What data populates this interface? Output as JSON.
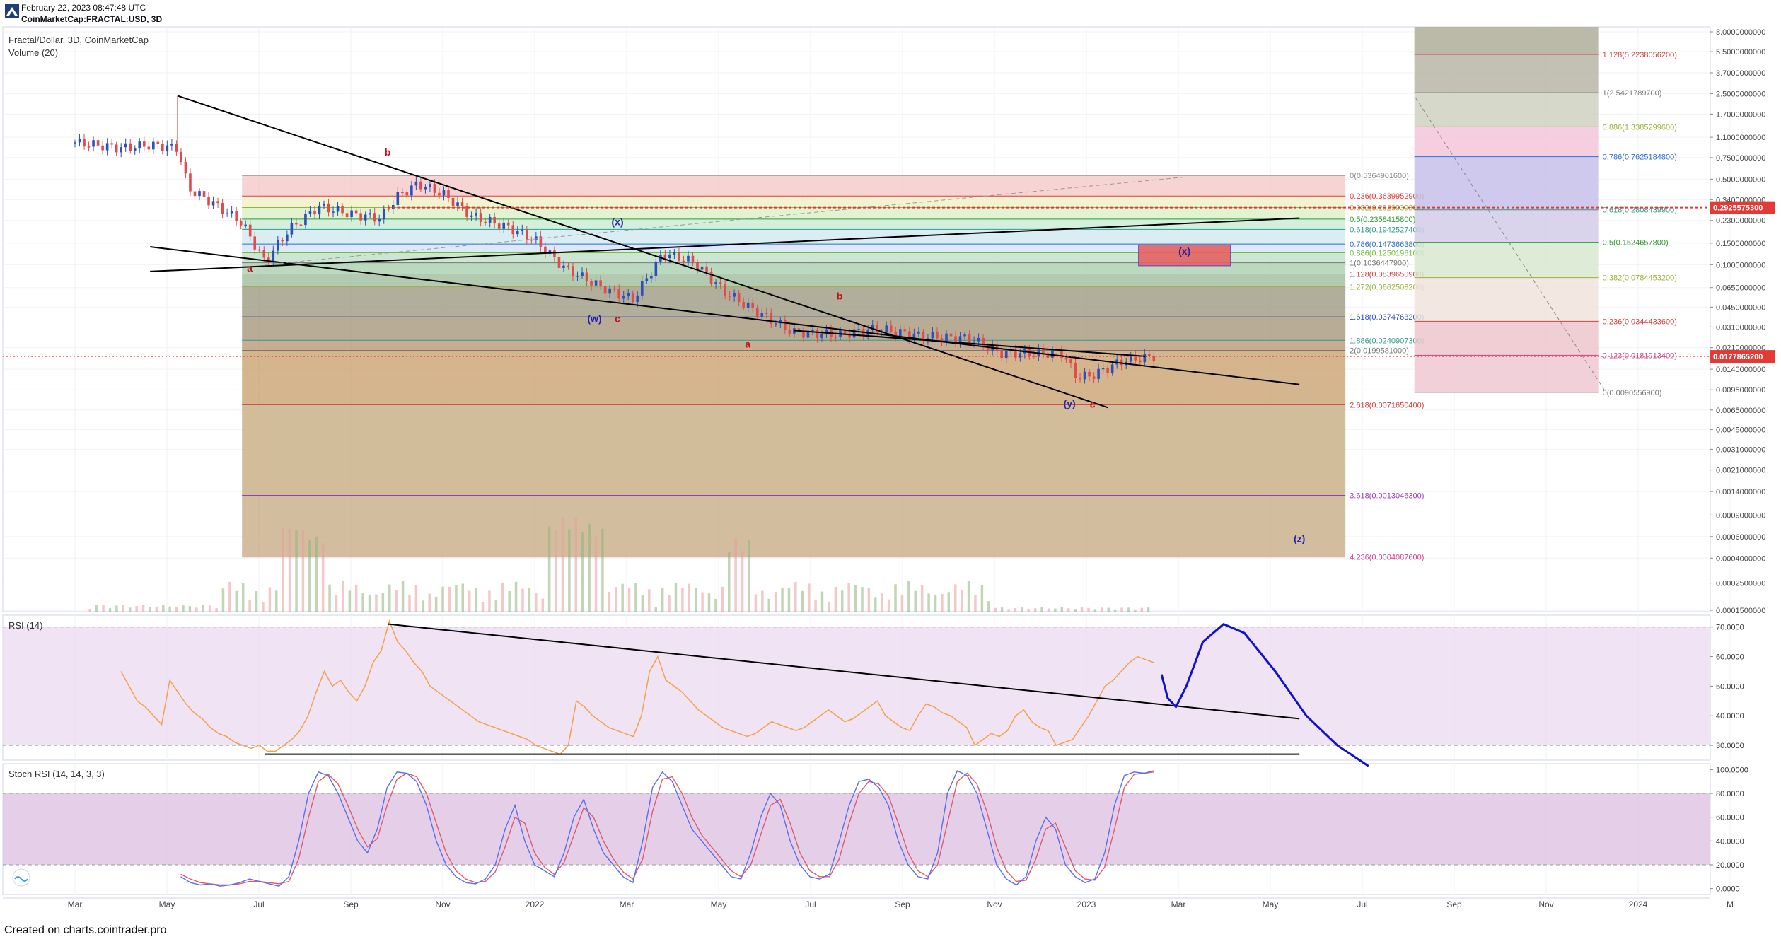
{
  "header": {
    "date_line": "February 22, 2023 08:47:48 UTC",
    "symbol_line": "CoinMarketCap:FRACTAL:USD, 3D",
    "chart_title": "Fractal/Dollar, 3D, CoinMarketCap",
    "volume_label": "Volume (20)"
  },
  "footer": {
    "credit": "Created on charts.cointrader.pro"
  },
  "colors": {
    "up": "#2b4fbf",
    "down": "#e04b4b",
    "price_marker": "#e53935",
    "rsi_line": "#f5a04a",
    "stoch_k": "#5a6cf0",
    "stoch_d": "#e05a6a",
    "panel_fill": "#ead7ee",
    "projection": "#1010d0"
  },
  "chart_data": {
    "type": "candlestick",
    "symbol": "Fractal/Dollar",
    "interval": "3D",
    "y_scale": "log",
    "price_axis_labels": [
      "8.0000000000",
      "5.5000000000",
      "3.7000000000",
      "2.5000000000",
      "1.7000000000",
      "1.1000000000",
      "0.7500000000",
      "0.5000000000",
      "0.3400000000",
      "0.2300000000",
      "0.1500000000",
      "0.1000000000",
      "0.0650000000",
      "0.0450000000",
      "0.0310000000",
      "0.0210000000",
      "0.0140000000",
      "0.0095000000",
      "0.0065000000",
      "0.0045000000",
      "0.0031000000",
      "0.0021000000",
      "0.0014000000",
      "0.0009000000",
      "0.0006000000",
      "0.0004000000",
      "0.0002500000",
      "0.0001500000"
    ],
    "time_axis_labels": [
      "Mar",
      "May",
      "Jul",
      "Sep",
      "Nov",
      "2022",
      "Mar",
      "May",
      "Jul",
      "Sep",
      "Nov",
      "2023",
      "Mar",
      "May",
      "Jul",
      "Sep",
      "Nov",
      "2024",
      "M"
    ],
    "current_price": "0.0177865200",
    "target_price": "0.2925575300",
    "candles_close_path": [
      [
        "2021-03",
        1.0
      ],
      [
        "2021-04",
        0.9
      ],
      [
        "2021-04-20",
        0.95
      ],
      [
        "2021-05-08",
        0.9
      ],
      [
        "2021-05-15",
        0.42
      ],
      [
        "2021-06",
        0.32
      ],
      [
        "2021-06-20",
        0.22
      ],
      [
        "2021-07-05",
        0.105
      ],
      [
        "2021-07-20",
        0.19
      ],
      [
        "2021-08-10",
        0.3
      ],
      [
        "2021-09",
        0.26
      ],
      [
        "2021-09-20",
        0.24
      ],
      [
        "2021-10",
        0.36
      ],
      [
        "2021-10-15",
        0.46
      ],
      [
        "2021-11",
        0.38
      ],
      [
        "2021-11-20",
        0.25
      ],
      [
        "2021-12-15",
        0.2
      ],
      [
        "2022-01",
        0.16
      ],
      [
        "2022-01-20",
        0.095
      ],
      [
        "2022-02-15",
        0.065
      ],
      [
        "2022-03-05",
        0.052
      ],
      [
        "2022-03-25",
        0.125
      ],
      [
        "2022-04-15",
        0.105
      ],
      [
        "2022-05-05",
        0.06
      ],
      [
        "2022-05-25",
        0.042
      ],
      [
        "2022-06-20",
        0.028
      ],
      [
        "2022-07-20",
        0.027
      ],
      [
        "2022-08-15",
        0.03
      ],
      [
        "2022-09-15",
        0.026
      ],
      [
        "2022-10-15",
        0.025
      ],
      [
        "2022-11-05",
        0.019
      ],
      [
        "2022-11-25",
        0.019
      ],
      [
        "2022-12-15",
        0.019
      ],
      [
        "2022-12-25",
        0.012
      ],
      [
        "2023-01-05",
        0.0125
      ],
      [
        "2023-01-25",
        0.0165
      ],
      [
        "2023-02-15",
        0.0178
      ]
    ],
    "fib_left": [
      {
        "label": "0(0.5364901600)",
        "value": 0.53649016,
        "color": "#8a8a8a"
      },
      {
        "label": "0.236(0.3639952900)",
        "value": 0.36399529,
        "color": "#e53935"
      },
      {
        "label": "0.382(0.2929939300)",
        "value": 0.29299393,
        "color": "#9ab23a"
      },
      {
        "label": "0.5(0.2358415800)",
        "value": 0.23584158,
        "color": "#2e9b2e"
      },
      {
        "label": "0.618(0.1942527400)",
        "value": 0.19425274,
        "color": "#2e9b8a"
      },
      {
        "label": "0.786(0.1473663800)",
        "value": 0.14736638,
        "color": "#2f6fd0"
      },
      {
        "label": "0.886(0.1250196100)",
        "value": 0.12501961,
        "color": "#6fbf3a"
      },
      {
        "label": "1(0.1036447900)",
        "value": 0.10364479,
        "color": "#777777"
      },
      {
        "label": "1.128(0.0839650900)",
        "value": 0.08396509,
        "color": "#d04040"
      },
      {
        "label": "1.272(0.0662508200)",
        "value": 0.06625082,
        "color": "#9ab23a"
      },
      {
        "label": "1.618(0.0374763200)",
        "value": 0.03747632,
        "color": "#2f4fc0"
      },
      {
        "label": "1.886(0.0240907300)",
        "value": 0.02409073,
        "color": "#2e9b8a"
      },
      {
        "label": "2(0.0199581000)",
        "value": 0.0199581,
        "color": "#777777"
      },
      {
        "label": "2.618(0.0071650400)",
        "value": 0.00716504,
        "color": "#d04040"
      },
      {
        "label": "3.618(0.0013046300)",
        "value": 0.00130463,
        "color": "#9b3ac0"
      },
      {
        "label": "4.236(0.0004087600)",
        "value": 0.00040876,
        "color": "#d0408a"
      }
    ],
    "fib_right": [
      {
        "label": "1.128(5.2238056200)",
        "value": 5.22380562,
        "color": "#d04040"
      },
      {
        "label": "1(2.5421789700)",
        "value": 2.54217897,
        "color": "#777777"
      },
      {
        "label": "0.886(1.3385299600)",
        "value": 1.33852996,
        "color": "#9ab23a"
      },
      {
        "label": "0.786(0.7625184800)",
        "value": 0.76251848,
        "color": "#2f6fd0"
      },
      {
        "label": "0.618(0.2808439900)",
        "value": 0.28084399,
        "color": "#2e9b8a"
      },
      {
        "label": "0.5(0.1524657800)",
        "value": 0.15246578,
        "color": "#2e9b2e"
      },
      {
        "label": "0.382(0.0784453200)",
        "value": 0.07844532,
        "color": "#9ab23a"
      },
      {
        "label": "0.236(0.0344433600)",
        "value": 0.03444336,
        "color": "#d04040"
      },
      {
        "label": "0.123(0.0181913400)",
        "value": 0.01819134,
        "color": "#d0408a"
      },
      {
        "label": "0(0.0090556900)",
        "value": 0.00905569,
        "color": "#777777"
      }
    ],
    "wave_labels": [
      {
        "text": "b",
        "date": "2021-09-25",
        "price": 0.78,
        "color": "#c0101a"
      },
      {
        "text": "a",
        "date": "2021-06-25",
        "price": 0.088,
        "color": "#c0101a"
      },
      {
        "text": "(x)",
        "date": "2022-02-25",
        "price": 0.21,
        "color": "#2222aa"
      },
      {
        "text": "(w)",
        "date": "2022-02-10",
        "price": 0.034,
        "color": "#2222aa"
      },
      {
        "text": "c",
        "date": "2022-02-25",
        "price": 0.034,
        "color": "#c0101a"
      },
      {
        "text": "b",
        "date": "2022-07-20",
        "price": 0.052,
        "color": "#c0101a"
      },
      {
        "text": "a",
        "date": "2022-05-20",
        "price": 0.021,
        "color": "#c0101a"
      },
      {
        "text": "(y)",
        "date": "2022-12-20",
        "price": 0.0069,
        "color": "#2222aa"
      },
      {
        "text": "c",
        "date": "2023-01-05",
        "price": 0.0068,
        "color": "#c0101a"
      },
      {
        "text": "(x)",
        "date": "2023-03-05",
        "price": 0.121,
        "color": "#2222aa"
      },
      {
        "text": "(z)",
        "date": "2023-05-20",
        "price": 0.00054,
        "color": "#2222aa"
      }
    ],
    "rsi": {
      "label": "RSI (14)",
      "axis_labels": [
        "70.0000",
        "60.0000",
        "50.0000",
        "40.0000",
        "30.0000"
      ],
      "ylim": [
        25,
        74
      ],
      "bands": [
        30,
        70
      ],
      "values": [
        55,
        50,
        45,
        43,
        40,
        37,
        52,
        48,
        44,
        41,
        39,
        36,
        34,
        33,
        31,
        30,
        29,
        30,
        28,
        28,
        30,
        32,
        35,
        40,
        48,
        55,
        50,
        52,
        48,
        45,
        50,
        58,
        62,
        72,
        65,
        62,
        58,
        55,
        50,
        48,
        46,
        44,
        42,
        40,
        38,
        37,
        36,
        35,
        34,
        33,
        32,
        30,
        29,
        28,
        27,
        30,
        45,
        43,
        40,
        38,
        36,
        35,
        34,
        33,
        40,
        55,
        60,
        52,
        50,
        48,
        45,
        42,
        40,
        38,
        36,
        35,
        34,
        33,
        34,
        36,
        38,
        37,
        36,
        35,
        36,
        38,
        40,
        42,
        40,
        38,
        39,
        41,
        43,
        45,
        40,
        38,
        36,
        35,
        40,
        44,
        43,
        41,
        40,
        38,
        36,
        30,
        32,
        34,
        33,
        35,
        40,
        42,
        38,
        36,
        35,
        30,
        31,
        32,
        36,
        40,
        45,
        50,
        52,
        55,
        58,
        60,
        59,
        58
      ],
      "projection": [
        [
          0.0,
          54
        ],
        [
          0.03,
          46
        ],
        [
          0.07,
          43
        ],
        [
          0.12,
          50
        ],
        [
          0.2,
          65
        ],
        [
          0.3,
          71
        ],
        [
          0.4,
          68
        ],
        [
          0.55,
          55
        ],
        [
          0.7,
          40
        ],
        [
          0.85,
          30
        ],
        [
          1.0,
          23
        ]
      ]
    },
    "stoch_rsi": {
      "label": "Stoch RSI (14, 14, 3, 3)",
      "axis_labels": [
        "100.0000",
        "80.0000",
        "60.0000",
        "40.0000",
        "20.0000",
        "0.0000"
      ],
      "ylim": [
        -5,
        105
      ],
      "bands": [
        20,
        80
      ],
      "k": [
        10,
        5,
        3,
        4,
        2,
        3,
        5,
        8,
        6,
        4,
        2,
        10,
        40,
        80,
        98,
        95,
        80,
        60,
        40,
        30,
        50,
        85,
        98,
        97,
        90,
        70,
        40,
        20,
        10,
        5,
        4,
        8,
        20,
        50,
        70,
        40,
        20,
        15,
        10,
        30,
        60,
        75,
        50,
        30,
        20,
        10,
        5,
        40,
        85,
        98,
        90,
        70,
        50,
        40,
        30,
        20,
        10,
        8,
        30,
        60,
        80,
        70,
        40,
        20,
        10,
        8,
        12,
        40,
        70,
        90,
        92,
        85,
        70,
        40,
        20,
        10,
        8,
        30,
        80,
        99,
        95,
        80,
        50,
        20,
        8,
        3,
        10,
        40,
        60,
        50,
        20,
        10,
        5,
        8,
        30,
        70,
        95,
        98,
        97,
        99
      ],
      "d": [
        12,
        8,
        5,
        4,
        3,
        3,
        4,
        6,
        6,
        5,
        4,
        6,
        25,
        60,
        90,
        96,
        88,
        70,
        50,
        35,
        42,
        70,
        92,
        97,
        94,
        80,
        55,
        30,
        15,
        8,
        5,
        6,
        14,
        35,
        60,
        55,
        30,
        18,
        12,
        22,
        45,
        68,
        60,
        40,
        25,
        14,
        8,
        25,
        65,
        92,
        94,
        80,
        60,
        45,
        35,
        25,
        15,
        10,
        20,
        45,
        70,
        75,
        55,
        30,
        15,
        10,
        10,
        25,
        55,
        80,
        90,
        88,
        78,
        55,
        30,
        15,
        10,
        20,
        55,
        90,
        97,
        88,
        65,
        35,
        15,
        6,
        7,
        25,
        50,
        55,
        35,
        15,
        8,
        7,
        18,
        50,
        85,
        96,
        97,
        98
      ]
    }
  }
}
